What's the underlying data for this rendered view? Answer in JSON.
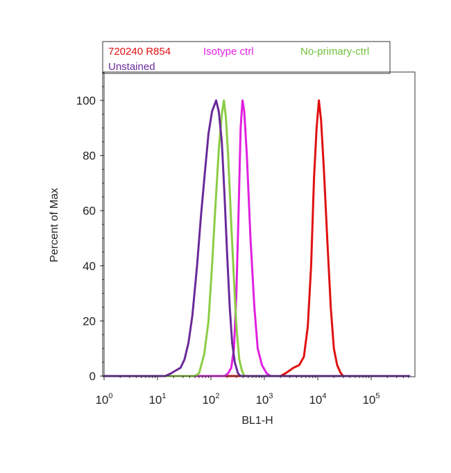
{
  "chart_data": {
    "type": "line",
    "title": "",
    "xlabel": "BL1-H",
    "ylabel": "Percent of Max",
    "xscale": "log",
    "xlim": [
      1,
      600000
    ],
    "ylim": [
      0,
      110
    ],
    "x_ticks": [
      {
        "base": "10",
        "exp": "0",
        "value": 1
      },
      {
        "base": "10",
        "exp": "1",
        "value": 10
      },
      {
        "base": "10",
        "exp": "2",
        "value": 100
      },
      {
        "base": "10",
        "exp": "3",
        "value": 1000
      },
      {
        "base": "10",
        "exp": "4",
        "value": 10000
      },
      {
        "base": "10",
        "exp": "5",
        "value": 100000
      }
    ],
    "y_ticks": [
      "0",
      "20",
      "40",
      "60",
      "80",
      "100"
    ],
    "grid": false,
    "legend_position": "top",
    "series": [
      {
        "name": "720240 R854",
        "color": "#e01010",
        "points": [
          [
            1,
            0
          ],
          [
            2000,
            0
          ],
          [
            2500,
            1
          ],
          [
            3500,
            3
          ],
          [
            4500,
            4
          ],
          [
            5500,
            7
          ],
          [
            6500,
            18
          ],
          [
            7500,
            40
          ],
          [
            8500,
            72
          ],
          [
            9500,
            90
          ],
          [
            10500,
            100
          ],
          [
            11500,
            93
          ],
          [
            13000,
            75
          ],
          [
            15000,
            50
          ],
          [
            17500,
            25
          ],
          [
            20000,
            10
          ],
          [
            23000,
            4
          ],
          [
            27000,
            1
          ],
          [
            30000,
            0
          ],
          [
            600000,
            0
          ]
        ]
      },
      {
        "name": "Isotype ctrl",
        "color": "#e020e0",
        "points": [
          [
            1,
            0
          ],
          [
            180,
            0
          ],
          [
            210,
            1
          ],
          [
            240,
            3
          ],
          [
            270,
            10
          ],
          [
            300,
            30
          ],
          [
            330,
            60
          ],
          [
            360,
            90
          ],
          [
            390,
            100
          ],
          [
            420,
            96
          ],
          [
            470,
            80
          ],
          [
            550,
            50
          ],
          [
            650,
            25
          ],
          [
            750,
            10
          ],
          [
            900,
            4
          ],
          [
            1100,
            1
          ],
          [
            1300,
            0
          ],
          [
            600000,
            0
          ]
        ]
      },
      {
        "name": "No-primary-ctrl",
        "color": "#8ccc44",
        "points": [
          [
            1,
            0
          ],
          [
            50,
            0
          ],
          [
            60,
            1
          ],
          [
            75,
            8
          ],
          [
            90,
            20
          ],
          [
            105,
            40
          ],
          [
            120,
            60
          ],
          [
            140,
            82
          ],
          [
            160,
            95
          ],
          [
            175,
            100
          ],
          [
            190,
            94
          ],
          [
            210,
            80
          ],
          [
            240,
            55
          ],
          [
            270,
            35
          ],
          [
            300,
            18
          ],
          [
            340,
            6
          ],
          [
            380,
            2
          ],
          [
            420,
            0
          ],
          [
            600000,
            0
          ]
        ]
      },
      {
        "name": "Unstained",
        "color": "#6a2a9a",
        "points": [
          [
            1,
            0
          ],
          [
            14,
            0
          ],
          [
            18,
            1
          ],
          [
            22,
            2
          ],
          [
            27,
            3
          ],
          [
            32,
            6
          ],
          [
            38,
            12
          ],
          [
            45,
            22
          ],
          [
            55,
            40
          ],
          [
            65,
            58
          ],
          [
            78,
            75
          ],
          [
            90,
            88
          ],
          [
            105,
            96
          ],
          [
            125,
            100
          ],
          [
            140,
            96
          ],
          [
            160,
            85
          ],
          [
            180,
            65
          ],
          [
            200,
            45
          ],
          [
            225,
            25
          ],
          [
            250,
            12
          ],
          [
            280,
            5
          ],
          [
            320,
            1
          ],
          [
            360,
            0
          ],
          [
            600000,
            0
          ]
        ]
      }
    ]
  },
  "legend": {
    "items": [
      {
        "label": "720240 R854",
        "color": "#e01010"
      },
      {
        "label": "Isotype ctrl",
        "color": "#e020e0"
      },
      {
        "label": "No-primary-ctrl",
        "color": "#6fbf3a"
      },
      {
        "label": "Unstained",
        "color": "#6a2a9a"
      }
    ]
  }
}
